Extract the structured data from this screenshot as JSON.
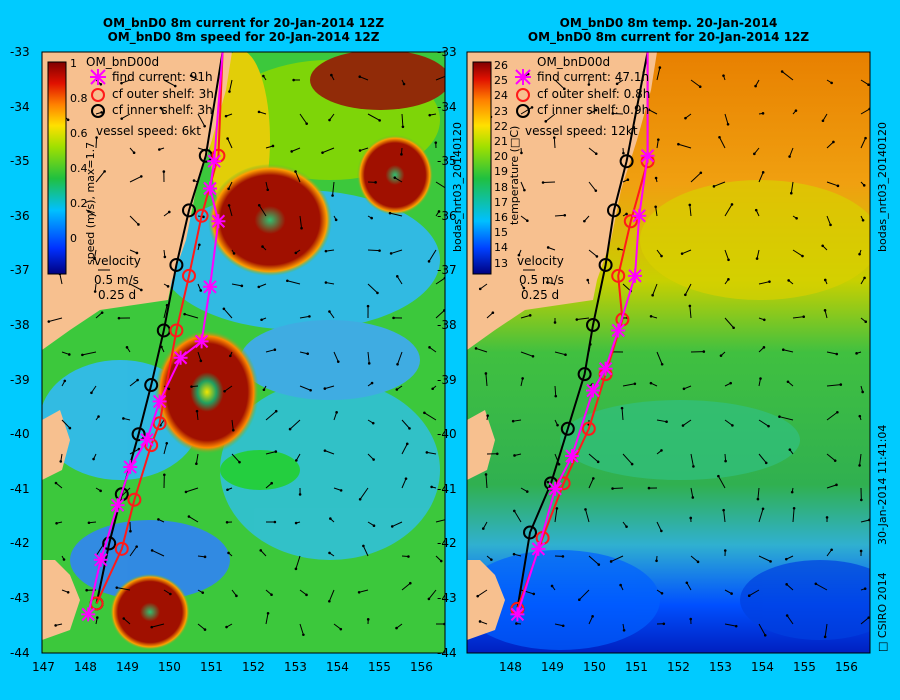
{
  "left": {
    "title_line1": "OM_bnD0 8m current for 20-Jan-2014 12Z",
    "title_line2": "OM_bnD0 8m speed for 20-Jan-2014 12Z",
    "legend_model": "OM_bnD00d",
    "legend_find": "find current: 91h",
    "legend_outer": "cf outer shelf: 3h",
    "legend_inner": "cf inner shelf: 3h",
    "vessel_speed": "vessel speed: 6kt",
    "colorbar_label": "speed (m/s), max=1.7",
    "colorbar_ticks": [
      "1",
      "0.8",
      "0.6",
      "0.4",
      "0.2",
      "0"
    ],
    "velocity_label": "velocity",
    "velocity_scale": "0.5 m/s",
    "velocity_time": "0.25 d"
  },
  "right": {
    "title_line1": "OM_bnD0 8m temp. 20-Jan-2014",
    "title_line2": "OM_bnD0 8m current for 20-Jan-2014 12Z",
    "legend_model": "OM_bnD00d",
    "legend_find": "find current: 47.1h",
    "legend_outer": "cf outer shelf: 0.8h",
    "legend_inner": "cf inner shelf: 0.9h",
    "vessel_speed": "vessel speed: 12kt",
    "colorbar_label": "temperature (□C)",
    "colorbar_ticks": [
      "26",
      "25",
      "24",
      "23",
      "22",
      "21",
      "20",
      "19",
      "18",
      "17",
      "16",
      "15",
      "14",
      "13"
    ],
    "velocity_label": "velocity",
    "velocity_scale": "0.5 m/s",
    "velocity_time": "0.25 d"
  },
  "y_ticks": [
    "-33",
    "-34",
    "-35",
    "-36",
    "-37",
    "-38",
    "-39",
    "-40",
    "-41",
    "-42",
    "-43",
    "-44"
  ],
  "x_ticks_left": [
    "147",
    "148",
    "149",
    "150",
    "151",
    "152",
    "153",
    "154",
    "155",
    "156"
  ],
  "x_ticks_right": [
    "148",
    "149",
    "150",
    "151",
    "152",
    "153",
    "154",
    "155",
    "156"
  ],
  "side_label_left": "bodas_nrt03_20140120",
  "side_label_right": "bodas_nrt03_20140120",
  "side_timestamp": "30-Jan-2014 11:41:04",
  "side_copyright": "□ CSIRO 2014",
  "colors": {
    "background": "#00cbff",
    "land": "#f7c08f",
    "find": "#ff00ff",
    "outer": "#ff1a1a",
    "inner": "#000000"
  },
  "tracks": {
    "left": {
      "find": [
        [
          148.1,
          -43.3
        ],
        [
          148.4,
          -42.3
        ],
        [
          148.8,
          -41.3
        ],
        [
          149.1,
          -40.6
        ],
        [
          149.5,
          -40.1
        ],
        [
          149.8,
          -39.4
        ],
        [
          150.3,
          -38.6
        ],
        [
          150.8,
          -38.3
        ],
        [
          151.0,
          -37.3
        ],
        [
          151.2,
          -36.1
        ],
        [
          151.0,
          -35.5
        ],
        [
          151.1,
          -35.0
        ],
        [
          151.3,
          -33.0
        ]
      ],
      "outer": [
        [
          148.3,
          -43.1
        ],
        [
          148.9,
          -42.1
        ],
        [
          149.2,
          -41.2
        ],
        [
          149.6,
          -40.2
        ],
        [
          149.8,
          -39.8
        ],
        [
          150.2,
          -38.1
        ],
        [
          150.5,
          -37.1
        ],
        [
          150.8,
          -36.0
        ],
        [
          151.2,
          -34.9
        ],
        [
          151.3,
          -33.0
        ]
      ],
      "inner": [
        [
          148.3,
          -43.1
        ],
        [
          148.6,
          -42.0
        ],
        [
          148.9,
          -41.1
        ],
        [
          149.3,
          -40.0
        ],
        [
          149.6,
          -39.1
        ],
        [
          149.9,
          -38.1
        ],
        [
          150.2,
          -36.9
        ],
        [
          150.5,
          -35.9
        ],
        [
          150.9,
          -34.9
        ],
        [
          151.3,
          -33.0
        ]
      ]
    },
    "right": {
      "find": [
        [
          148.2,
          -43.3
        ],
        [
          148.7,
          -42.1
        ],
        [
          149.1,
          -41.0
        ],
        [
          149.5,
          -40.4
        ],
        [
          150.0,
          -39.2
        ],
        [
          150.3,
          -38.8
        ],
        [
          150.6,
          -38.1
        ],
        [
          151.0,
          -37.1
        ],
        [
          151.1,
          -36.0
        ],
        [
          151.3,
          -34.9
        ],
        [
          151.3,
          -33.0
        ]
      ],
      "outer": [
        [
          148.2,
          -43.2
        ],
        [
          148.8,
          -41.9
        ],
        [
          149.3,
          -40.9
        ],
        [
          149.9,
          -39.9
        ],
        [
          150.3,
          -38.9
        ],
        [
          150.7,
          -37.9
        ],
        [
          150.6,
          -37.1
        ],
        [
          150.9,
          -36.1
        ],
        [
          151.3,
          -35.0
        ],
        [
          151.3,
          -33.0
        ]
      ],
      "inner": [
        [
          148.2,
          -43.2
        ],
        [
          148.5,
          -41.8
        ],
        [
          149.0,
          -40.9
        ],
        [
          149.4,
          -39.9
        ],
        [
          149.8,
          -38.9
        ],
        [
          150.0,
          -38.0
        ],
        [
          150.3,
          -36.9
        ],
        [
          150.5,
          -35.9
        ],
        [
          150.8,
          -35.0
        ],
        [
          151.3,
          -33.0
        ]
      ]
    }
  }
}
